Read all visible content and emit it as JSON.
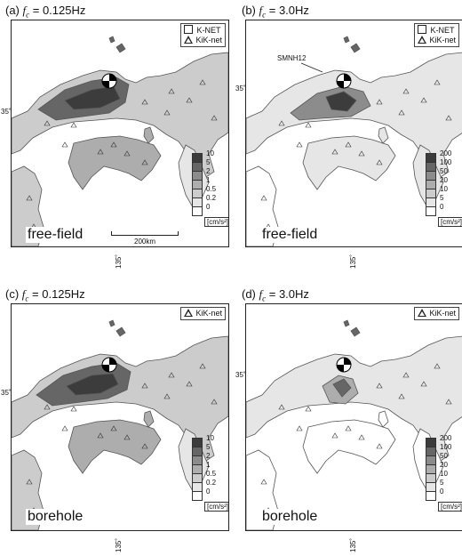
{
  "panels": [
    {
      "id": "a",
      "title_prefix": "(a) ",
      "title_var": "f",
      "title_sub": "c",
      "title_value": " = 0.125Hz",
      "legend": [
        "K-NET",
        "KiK-net"
      ],
      "colorbar_ticks": [
        "10",
        "5",
        "2",
        "1",
        "0.5",
        "0.2",
        "0"
      ],
      "unit": "[cm/s²]",
      "site_label": "free-field",
      "lat_label": "35˚",
      "lon_label": "135˚",
      "scale_label": "200km"
    },
    {
      "id": "b",
      "title_prefix": "(b) ",
      "title_var": "f",
      "title_sub": "c",
      "title_value": " = 3.0Hz",
      "legend": [
        "K-NET",
        "KiK-net"
      ],
      "colorbar_ticks": [
        "200",
        "100",
        "50",
        "20",
        "10",
        "5",
        "0"
      ],
      "unit": "[cm/s²]",
      "site_label": "free-field",
      "lat_label": "35˚",
      "lon_label": "135˚",
      "station_label": "SMNH12"
    },
    {
      "id": "c",
      "title_prefix": "(c) ",
      "title_var": "f",
      "title_sub": "c",
      "title_value": " = 0.125Hz",
      "legend": [
        "KiK-net"
      ],
      "colorbar_ticks": [
        "10",
        "5",
        "2",
        "1",
        "0.5",
        "0.2",
        "0"
      ],
      "unit": "[cm/s²]",
      "site_label": "borehole",
      "lat_label": "35˚",
      "lon_label": "135˚"
    },
    {
      "id": "d",
      "title_prefix": "(d) ",
      "title_var": "f",
      "title_sub": "c",
      "title_value": " = 3.0Hz",
      "legend": [
        "KiK-net"
      ],
      "colorbar_ticks": [
        "200",
        "100",
        "50",
        "20",
        "10",
        "5",
        "0"
      ],
      "unit": "[cm/s²]",
      "site_label": "borehole",
      "lat_label": "35˚",
      "lon_label": "135˚"
    }
  ],
  "colors": {
    "level_1": "#ffffff",
    "level_2": "#e6e6e6",
    "level_3": "#cccccc",
    "level_4": "#adadad",
    "level_5": "#8c8c8c",
    "level_6": "#666666",
    "level_7": "#3c3c3c"
  }
}
